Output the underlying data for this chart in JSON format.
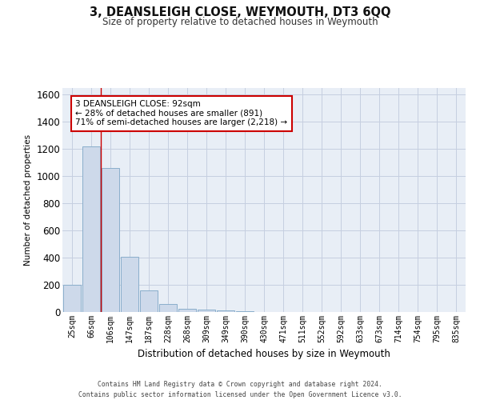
{
  "title": "3, DEANSLEIGH CLOSE, WEYMOUTH, DT3 6QQ",
  "subtitle": "Size of property relative to detached houses in Weymouth",
  "xlabel": "Distribution of detached houses by size in Weymouth",
  "ylabel": "Number of detached properties",
  "categories": [
    "25sqm",
    "66sqm",
    "106sqm",
    "147sqm",
    "187sqm",
    "228sqm",
    "268sqm",
    "309sqm",
    "349sqm",
    "390sqm",
    "430sqm",
    "471sqm",
    "511sqm",
    "552sqm",
    "592sqm",
    "633sqm",
    "673sqm",
    "714sqm",
    "754sqm",
    "795sqm",
    "835sqm"
  ],
  "values": [
    200,
    1220,
    1060,
    405,
    160,
    60,
    25,
    15,
    10,
    3,
    0,
    0,
    0,
    0,
    0,
    0,
    0,
    0,
    0,
    0,
    0
  ],
  "bar_color": "#cdd9ea",
  "bar_edge_color": "#8aaecb",
  "grid_color": "#c5cfe0",
  "background_color": "#e8eef6",
  "property_line_x": 1.5,
  "annotation_text": "3 DEANSLEIGH CLOSE: 92sqm\n← 28% of detached houses are smaller (891)\n71% of semi-detached houses are larger (2,218) →",
  "annotation_box_color": "#ffffff",
  "annotation_box_edge": "#cc0000",
  "annotation_line_color": "#cc0000",
  "ylim": [
    0,
    1650
  ],
  "yticks": [
    0,
    200,
    400,
    600,
    800,
    1000,
    1200,
    1400,
    1600
  ],
  "footer_line1": "Contains HM Land Registry data © Crown copyright and database right 2024.",
  "footer_line2": "Contains public sector information licensed under the Open Government Licence v3.0."
}
